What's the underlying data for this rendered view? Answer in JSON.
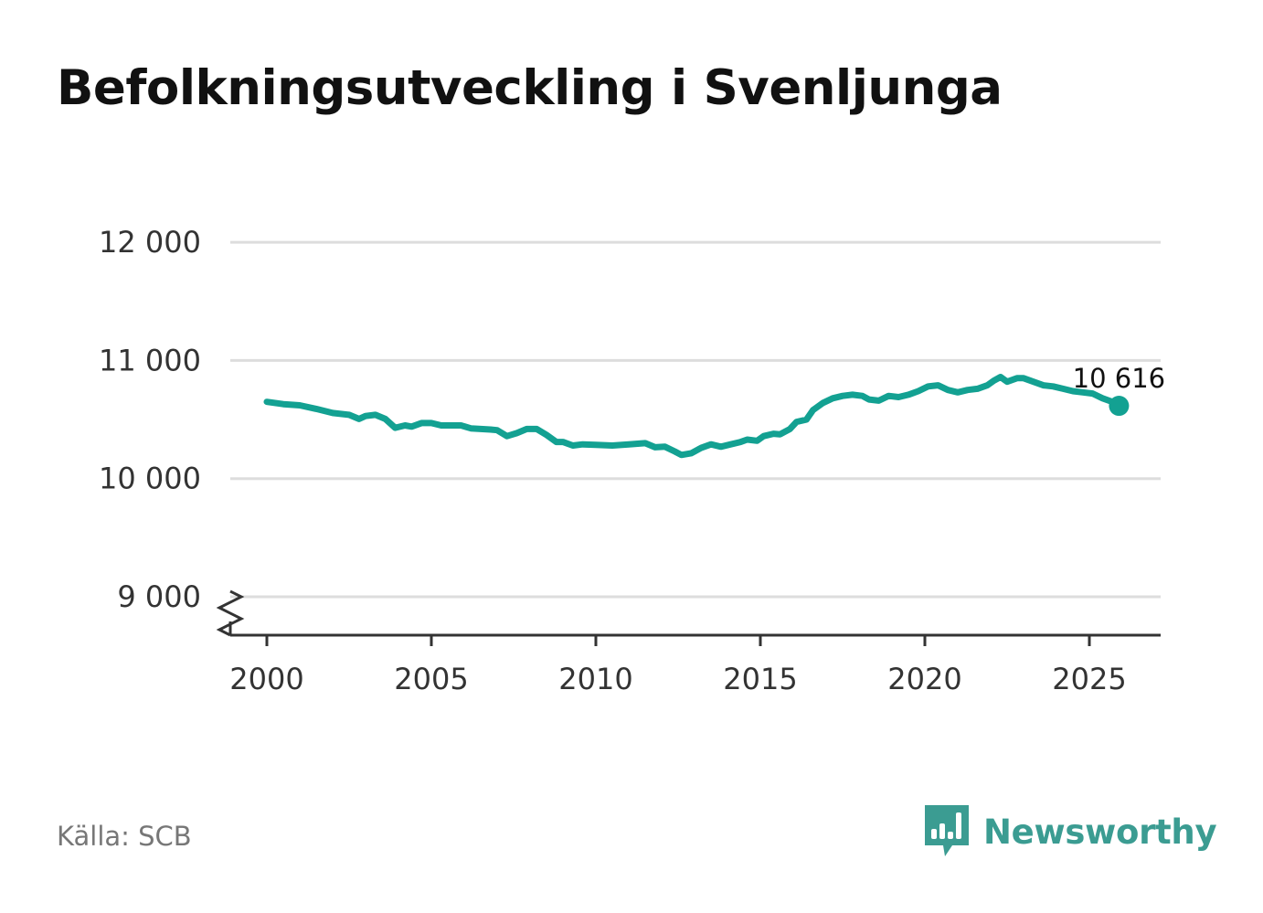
{
  "title": "Befolkningsutveckling i Svenljunga",
  "source": "Källa: SCB",
  "brand": {
    "name": "Newsworthy",
    "icon": "bar-chart-speech-bubble-icon",
    "color": "#3b9c92"
  },
  "colors": {
    "line": "#13a192",
    "grid": "#dddddd",
    "axis": "#333333"
  },
  "chart_data": {
    "type": "line",
    "title": "Befolkningsutveckling i Svenljunga",
    "xlabel": "",
    "ylabel": "",
    "ylim": [
      8700,
      12000
    ],
    "xlim": [
      1999.6,
      2027.3
    ],
    "y_axis_break": true,
    "grid": true,
    "yticks": [
      9000,
      10000,
      11000,
      12000
    ],
    "ytick_labels": [
      "9 000",
      "10 000",
      "11 000",
      "12 000"
    ],
    "xticks": [
      2000,
      2005,
      2010,
      2015,
      2020,
      2025
    ],
    "xtick_labels": [
      "2000",
      "2005",
      "2010",
      "2015",
      "2020",
      "2025"
    ],
    "end_label": "10 616",
    "series": [
      {
        "values": [
          [
            2000.0,
            10650
          ],
          [
            2000.5,
            10630
          ],
          [
            2001.0,
            10620
          ],
          [
            2001.5,
            10590
          ],
          [
            2002.0,
            10555
          ],
          [
            2002.5,
            10540
          ],
          [
            2002.8,
            10505
          ],
          [
            2003.0,
            10530
          ],
          [
            2003.3,
            10540
          ],
          [
            2003.6,
            10505
          ],
          [
            2003.9,
            10430
          ],
          [
            2004.2,
            10450
          ],
          [
            2004.4,
            10440
          ],
          [
            2004.7,
            10470
          ],
          [
            2005.0,
            10470
          ],
          [
            2005.3,
            10450
          ],
          [
            2005.6,
            10450
          ],
          [
            2005.9,
            10450
          ],
          [
            2006.2,
            10425
          ],
          [
            2006.5,
            10420
          ],
          [
            2006.8,
            10415
          ],
          [
            2007.0,
            10410
          ],
          [
            2007.3,
            10360
          ],
          [
            2007.6,
            10385
          ],
          [
            2007.9,
            10420
          ],
          [
            2008.2,
            10420
          ],
          [
            2008.5,
            10370
          ],
          [
            2008.8,
            10310
          ],
          [
            2009.0,
            10310
          ],
          [
            2009.3,
            10280
          ],
          [
            2009.6,
            10290
          ],
          [
            2010.0,
            10285
          ],
          [
            2010.5,
            10280
          ],
          [
            2011.0,
            10290
          ],
          [
            2011.5,
            10300
          ],
          [
            2011.8,
            10265
          ],
          [
            2012.1,
            10270
          ],
          [
            2012.4,
            10230
          ],
          [
            2012.6,
            10200
          ],
          [
            2012.9,
            10215
          ],
          [
            2013.2,
            10260
          ],
          [
            2013.5,
            10290
          ],
          [
            2013.8,
            10270
          ],
          [
            2014.1,
            10290
          ],
          [
            2014.4,
            10310
          ],
          [
            2014.6,
            10330
          ],
          [
            2014.9,
            10320
          ],
          [
            2015.1,
            10360
          ],
          [
            2015.4,
            10380
          ],
          [
            2015.6,
            10375
          ],
          [
            2015.9,
            10420
          ],
          [
            2016.1,
            10480
          ],
          [
            2016.4,
            10500
          ],
          [
            2016.6,
            10580
          ],
          [
            2016.9,
            10640
          ],
          [
            2017.2,
            10680
          ],
          [
            2017.5,
            10700
          ],
          [
            2017.8,
            10710
          ],
          [
            2018.1,
            10700
          ],
          [
            2018.3,
            10670
          ],
          [
            2018.6,
            10660
          ],
          [
            2018.9,
            10700
          ],
          [
            2019.2,
            10690
          ],
          [
            2019.5,
            10710
          ],
          [
            2019.8,
            10740
          ],
          [
            2020.1,
            10780
          ],
          [
            2020.4,
            10790
          ],
          [
            2020.7,
            10750
          ],
          [
            2021.0,
            10730
          ],
          [
            2021.3,
            10750
          ],
          [
            2021.6,
            10760
          ],
          [
            2021.9,
            10790
          ],
          [
            2022.1,
            10830
          ],
          [
            2022.3,
            10860
          ],
          [
            2022.5,
            10820
          ],
          [
            2022.8,
            10850
          ],
          [
            2023.0,
            10850
          ],
          [
            2023.3,
            10820
          ],
          [
            2023.6,
            10790
          ],
          [
            2023.9,
            10780
          ],
          [
            2024.2,
            10760
          ],
          [
            2024.5,
            10740
          ],
          [
            2024.8,
            10730
          ],
          [
            2025.1,
            10720
          ],
          [
            2025.4,
            10680
          ],
          [
            2025.7,
            10650
          ],
          [
            2025.9,
            10616
          ]
        ]
      }
    ]
  }
}
